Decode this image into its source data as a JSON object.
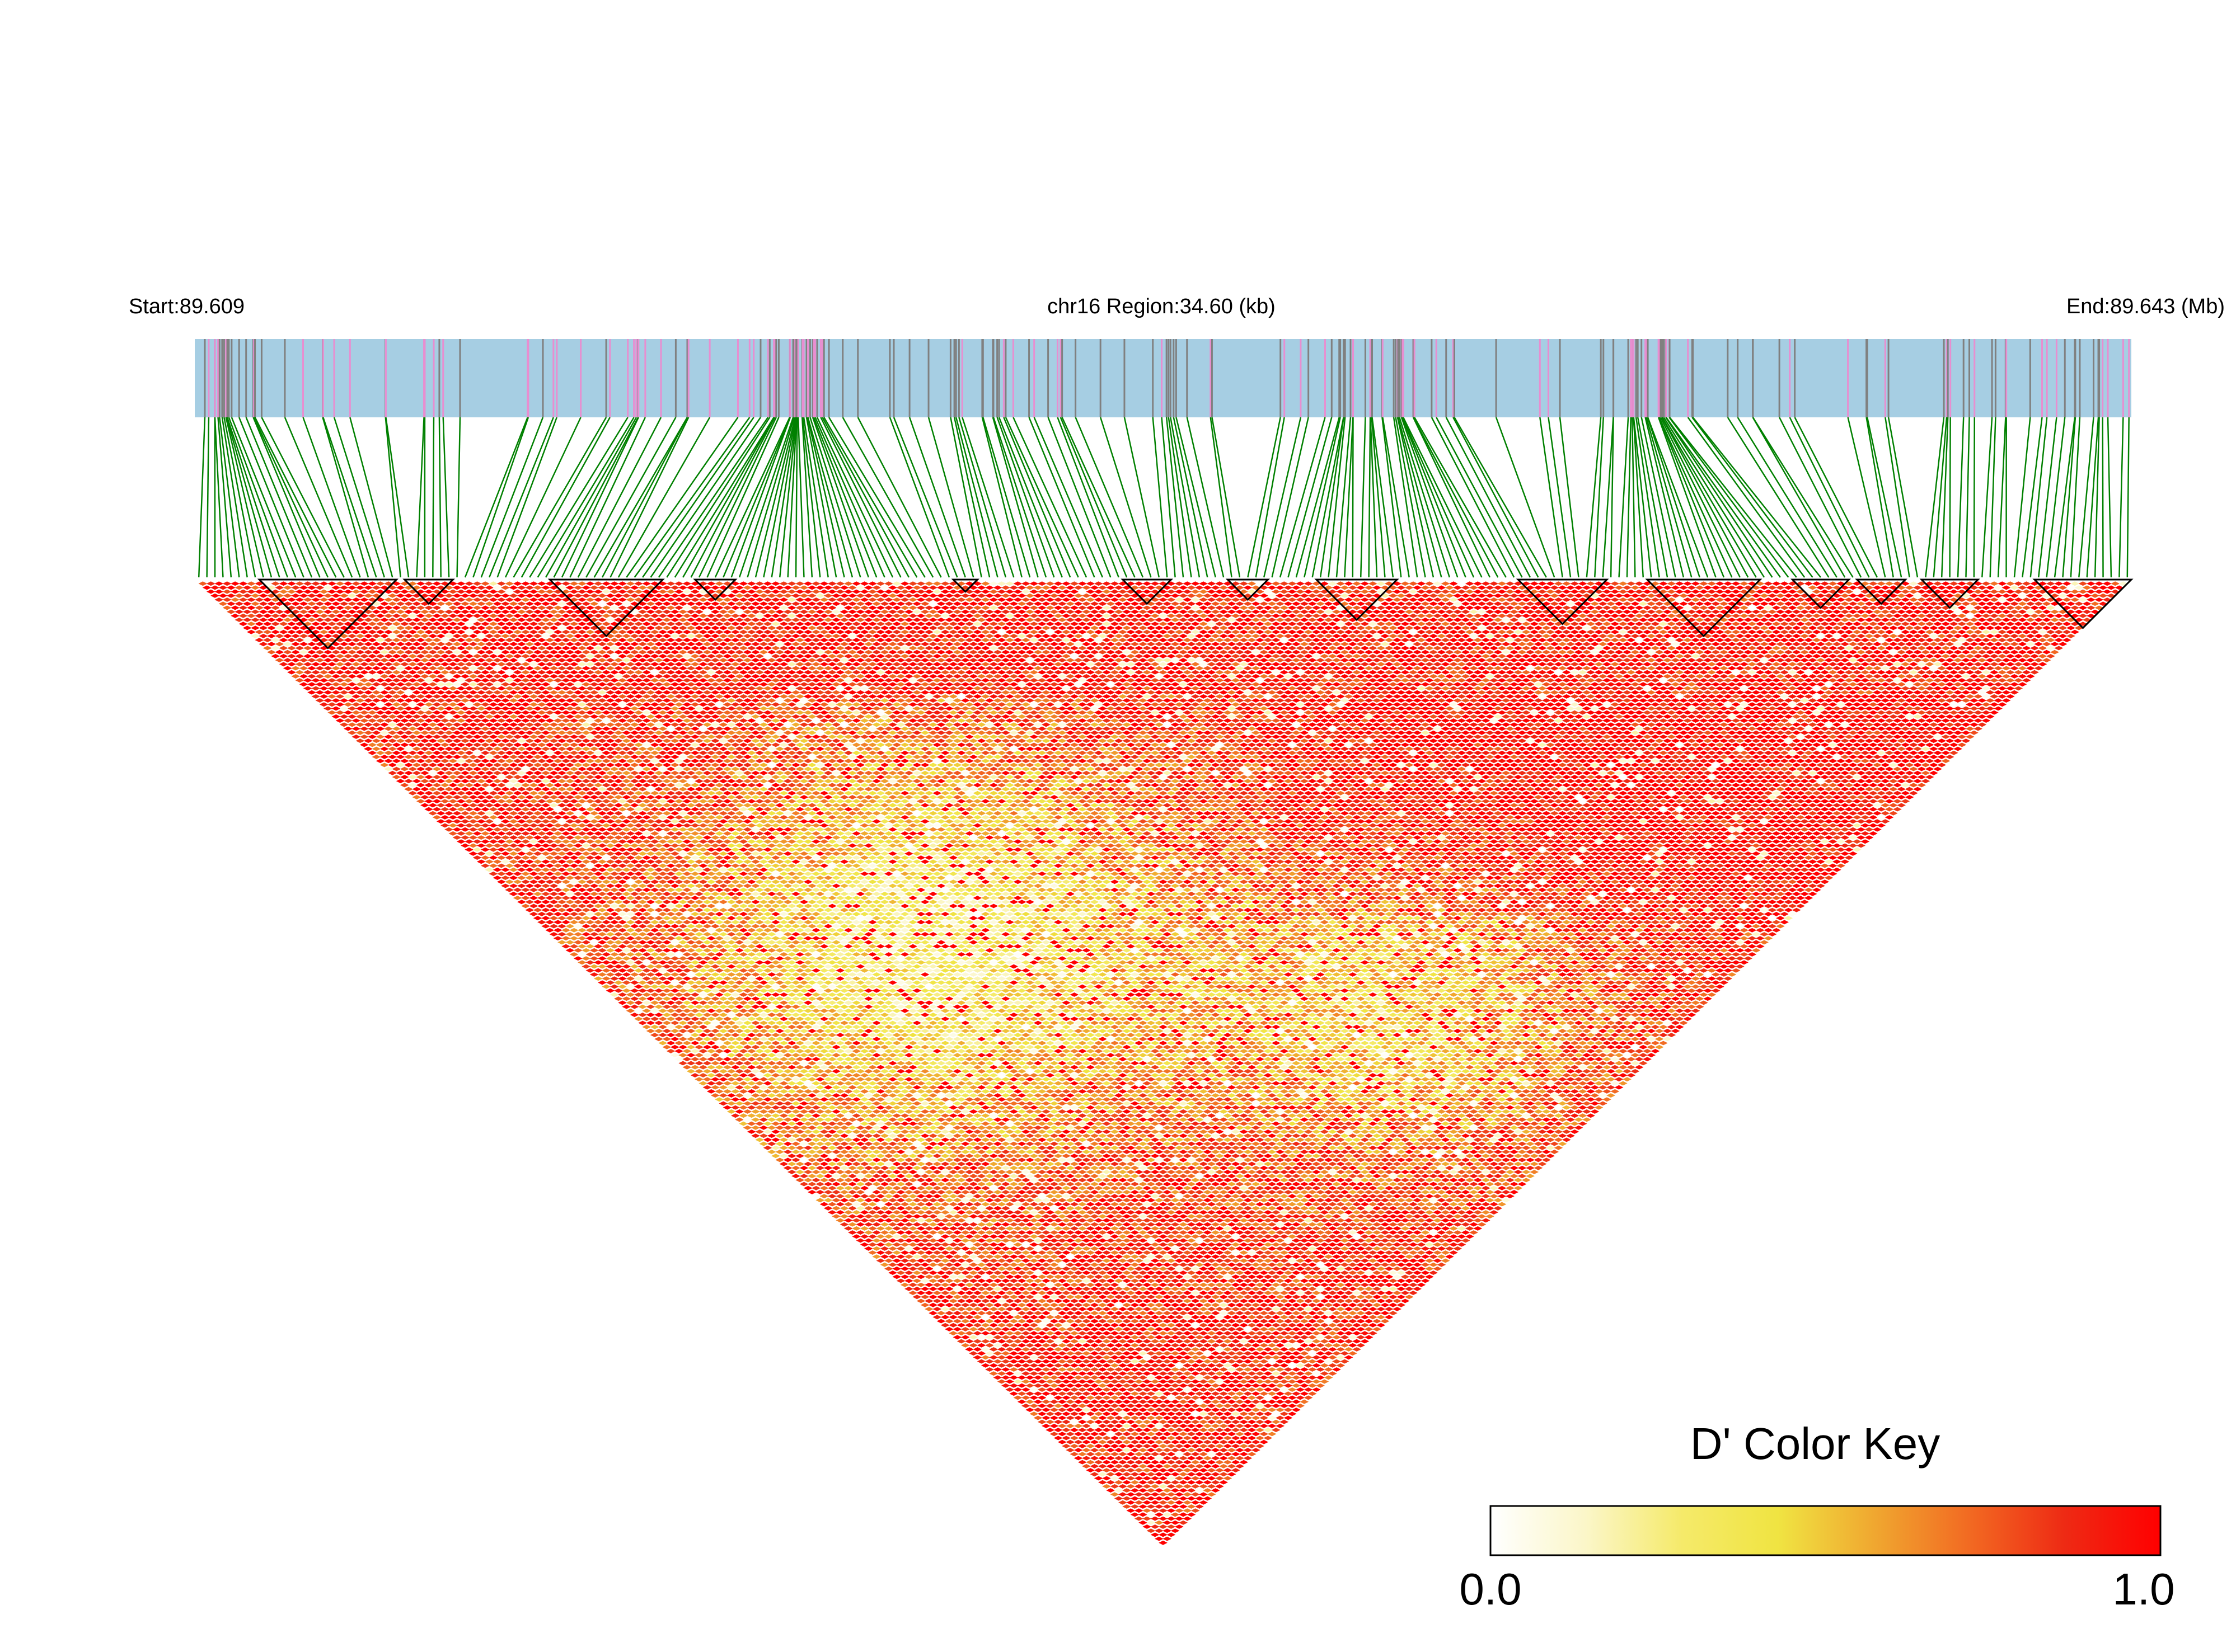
{
  "header": {
    "start_label": "Start:89.609",
    "region_label": "chr16 Region:34.60 (kb)",
    "end_label": "End:89.643 (Mb)"
  },
  "color_key": {
    "title": "D' Color Key",
    "min_label": "0.0",
    "max_label": "1.0",
    "min": 0.0,
    "max": 1.0,
    "gradient": [
      "#ffffff",
      "#fbf6c8",
      "#f5ea6a",
      "#f0e442",
      "#f0a830",
      "#f26a22",
      "#ee2a14",
      "#ff0000"
    ]
  },
  "colors": {
    "track_fill": "#a6cee3",
    "snp_line_grey": "#808080",
    "snp_line_pink": "#e88ed0",
    "connector": "#008000",
    "block_outline": "#000000"
  },
  "chart_data": {
    "type": "heatmap",
    "description_measure": "D'",
    "chromosome": "chr16",
    "region_start_mb": 89.609,
    "region_end_mb": 89.643,
    "region_length_kb": 34.6,
    "approx_snp_count": 240,
    "value_range": [
      0.0,
      1.0
    ],
    "regional_pattern": [
      {
        "region": "left edge near-diagonal",
        "typical_dprime": 0.95
      },
      {
        "region": "central-left long range",
        "typical_dprime": 0.25
      },
      {
        "region": "center bottom long range",
        "typical_dprime": 0.75
      },
      {
        "region": "right half near-diagonal",
        "typical_dprime": 0.95
      },
      {
        "region": "central-right mid range",
        "typical_dprime": 0.3
      }
    ]
  }
}
